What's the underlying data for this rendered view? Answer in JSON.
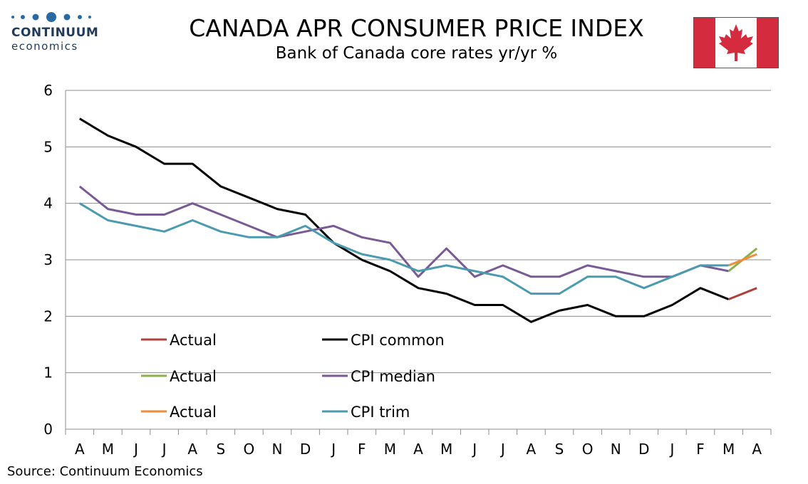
{
  "logo": {
    "name": "CONTINUUM",
    "sub": "economics"
  },
  "title": "CANADA APR CONSUMER PRICE INDEX",
  "subtitle": "Bank of Canada core rates yr/yr %",
  "source": "Source: Continuum Economics",
  "colors": {
    "cpi_common": "#000000",
    "cpi_median": "#7a5a94",
    "cpi_trim": "#4a9bb0",
    "actual_common": "#b0403a",
    "actual_median": "#8bb04a",
    "actual_trim": "#f08c3a",
    "flag_red": "#d52b3e"
  },
  "chart_data": {
    "type": "line",
    "categories": [
      "A",
      "M",
      "J",
      "J",
      "A",
      "S",
      "O",
      "N",
      "D",
      "J",
      "F",
      "M",
      "A",
      "M",
      "J",
      "J",
      "A",
      "S",
      "O",
      "N",
      "D",
      "J",
      "F",
      "M",
      "A"
    ],
    "ylim": [
      0,
      6
    ],
    "yticks": [
      "0",
      "1",
      "2",
      "3",
      "4",
      "5",
      "6"
    ],
    "grid": true,
    "legend_position": "bottom-left",
    "series": [
      {
        "name": "CPI common",
        "color": "#000000",
        "values": [
          5.5,
          5.2,
          5.0,
          4.7,
          4.7,
          4.3,
          4.1,
          3.9,
          3.8,
          3.3,
          3.0,
          2.8,
          2.5,
          2.4,
          2.2,
          2.2,
          1.9,
          2.1,
          2.2,
          2.0,
          2.0,
          2.2,
          2.5,
          2.3,
          null
        ]
      },
      {
        "name": "CPI median",
        "color": "#7a5a94",
        "values": [
          4.3,
          3.9,
          3.8,
          3.8,
          4.0,
          3.8,
          3.6,
          3.4,
          3.5,
          3.6,
          3.4,
          3.3,
          2.7,
          3.2,
          2.7,
          2.9,
          2.7,
          2.7,
          2.9,
          2.8,
          2.7,
          2.7,
          2.9,
          2.8,
          null
        ]
      },
      {
        "name": "CPI trim",
        "color": "#4a9bb0",
        "values": [
          4.0,
          3.7,
          3.6,
          3.5,
          3.7,
          3.5,
          3.4,
          3.4,
          3.6,
          3.3,
          3.1,
          3.0,
          2.8,
          2.9,
          2.8,
          2.7,
          2.4,
          2.4,
          2.7,
          2.7,
          2.5,
          2.7,
          2.9,
          2.9,
          null
        ]
      },
      {
        "name": "Actual",
        "color": "#b0403a",
        "values": [
          null,
          null,
          null,
          null,
          null,
          null,
          null,
          null,
          null,
          null,
          null,
          null,
          null,
          null,
          null,
          null,
          null,
          null,
          null,
          null,
          null,
          null,
          null,
          2.3,
          2.5
        ]
      },
      {
        "name": "Actual",
        "color": "#8bb04a",
        "values": [
          null,
          null,
          null,
          null,
          null,
          null,
          null,
          null,
          null,
          null,
          null,
          null,
          null,
          null,
          null,
          null,
          null,
          null,
          null,
          null,
          null,
          null,
          null,
          2.8,
          3.2
        ]
      },
      {
        "name": "Actual",
        "color": "#f08c3a",
        "values": [
          null,
          null,
          null,
          null,
          null,
          null,
          null,
          null,
          null,
          null,
          null,
          null,
          null,
          null,
          null,
          null,
          null,
          null,
          null,
          null,
          null,
          null,
          null,
          2.9,
          3.1
        ]
      }
    ],
    "legend": [
      {
        "label": "Actual",
        "color": "#b0403a"
      },
      {
        "label": "CPI common",
        "color": "#000000"
      },
      {
        "label": "Actual",
        "color": "#8bb04a"
      },
      {
        "label": "CPI median",
        "color": "#7a5a94"
      },
      {
        "label": "Actual",
        "color": "#f08c3a"
      },
      {
        "label": "CPI trim",
        "color": "#4a9bb0"
      }
    ]
  }
}
